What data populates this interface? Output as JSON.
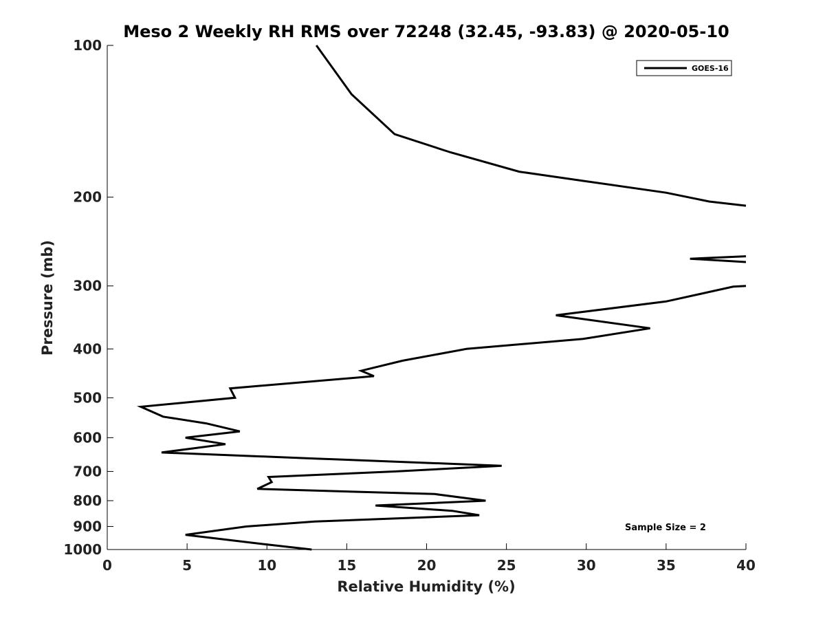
{
  "chart_data": {
    "type": "line",
    "title": "Meso 2 Weekly RH RMS over 72248 (32.45, -93.83) @ 2020-05-10",
    "xlabel": "Relative Humidity (%)",
    "ylabel": "Pressure (mb)",
    "xlim": [
      0,
      40
    ],
    "ylim": [
      100,
      1000
    ],
    "y_scale": "log",
    "y_reversed": true,
    "x_ticks": [
      0,
      5,
      10,
      15,
      20,
      25,
      30,
      35,
      40
    ],
    "y_ticks": [
      100,
      200,
      300,
      400,
      500,
      600,
      700,
      800,
      900,
      1000
    ],
    "grid": false,
    "legend_position": "top-right",
    "annotation": "Sample Size = 2",
    "series": [
      {
        "name": "GOES-16",
        "color": "#000000",
        "points": [
          [
            13.1,
            100
          ],
          [
            15.3,
            125
          ],
          [
            18.0,
            150
          ],
          [
            21.5,
            163
          ],
          [
            25.8,
            178
          ],
          [
            30.0,
            186
          ],
          [
            35.0,
            196
          ],
          [
            37.7,
            204
          ],
          [
            40.0,
            208
          ],
          [
            null,
            null
          ],
          [
            40.0,
            262
          ],
          [
            36.5,
            265
          ],
          [
            40.0,
            269
          ],
          [
            null,
            null
          ],
          [
            40.0,
            300
          ],
          [
            39.2,
            301
          ],
          [
            35.0,
            322
          ],
          [
            28.1,
            343
          ],
          [
            34.0,
            364
          ],
          [
            29.8,
            382
          ],
          [
            22.5,
            400
          ],
          [
            18.5,
            422
          ],
          [
            15.9,
            442
          ],
          [
            16.7,
            453
          ],
          [
            7.7,
            479
          ],
          [
            8.0,
            500
          ],
          [
            2.1,
            521
          ],
          [
            3.5,
            545
          ],
          [
            6.2,
            562
          ],
          [
            8.3,
            583
          ],
          [
            4.9,
            600
          ],
          [
            7.4,
            618
          ],
          [
            3.4,
            642
          ],
          [
            13.0,
            660
          ],
          [
            24.7,
            682
          ],
          [
            18.0,
            700
          ],
          [
            10.1,
            718
          ],
          [
            10.3,
            735
          ],
          [
            9.4,
            758
          ],
          [
            20.5,
            776
          ],
          [
            23.7,
            800
          ],
          [
            16.8,
            818
          ],
          [
            21.6,
            838
          ],
          [
            23.3,
            855
          ],
          [
            13.0,
            880
          ],
          [
            8.7,
            900
          ],
          [
            4.9,
            935
          ],
          [
            9.7,
            975
          ],
          [
            12.8,
            1000
          ]
        ]
      }
    ]
  }
}
